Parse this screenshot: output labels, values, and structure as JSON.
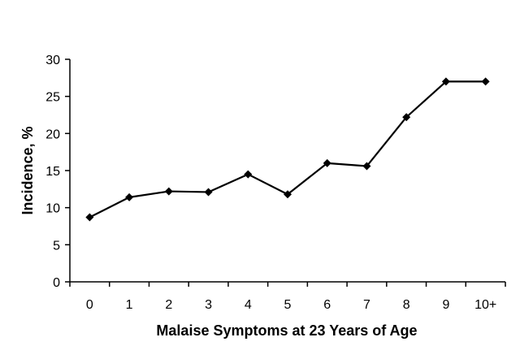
{
  "chart_data": {
    "type": "line",
    "title": "",
    "xlabel": "Malaise Symptoms at 23 Years of Age",
    "ylabel": "Incidence, %",
    "categories": [
      "0",
      "1",
      "2",
      "3",
      "4",
      "5",
      "6",
      "7",
      "8",
      "9",
      "10+"
    ],
    "series": [
      {
        "values": [
          8.7,
          11.4,
          12.2,
          12.1,
          14.5,
          11.8,
          16.0,
          15.6,
          22.2,
          27.0,
          27.0
        ],
        "color": "#000000",
        "marker": "diamond"
      }
    ],
    "ylim": [
      0,
      30
    ],
    "yticks": [
      "0",
      "5",
      "10",
      "15",
      "20",
      "25",
      "30"
    ],
    "grid": false,
    "legend": "none"
  }
}
